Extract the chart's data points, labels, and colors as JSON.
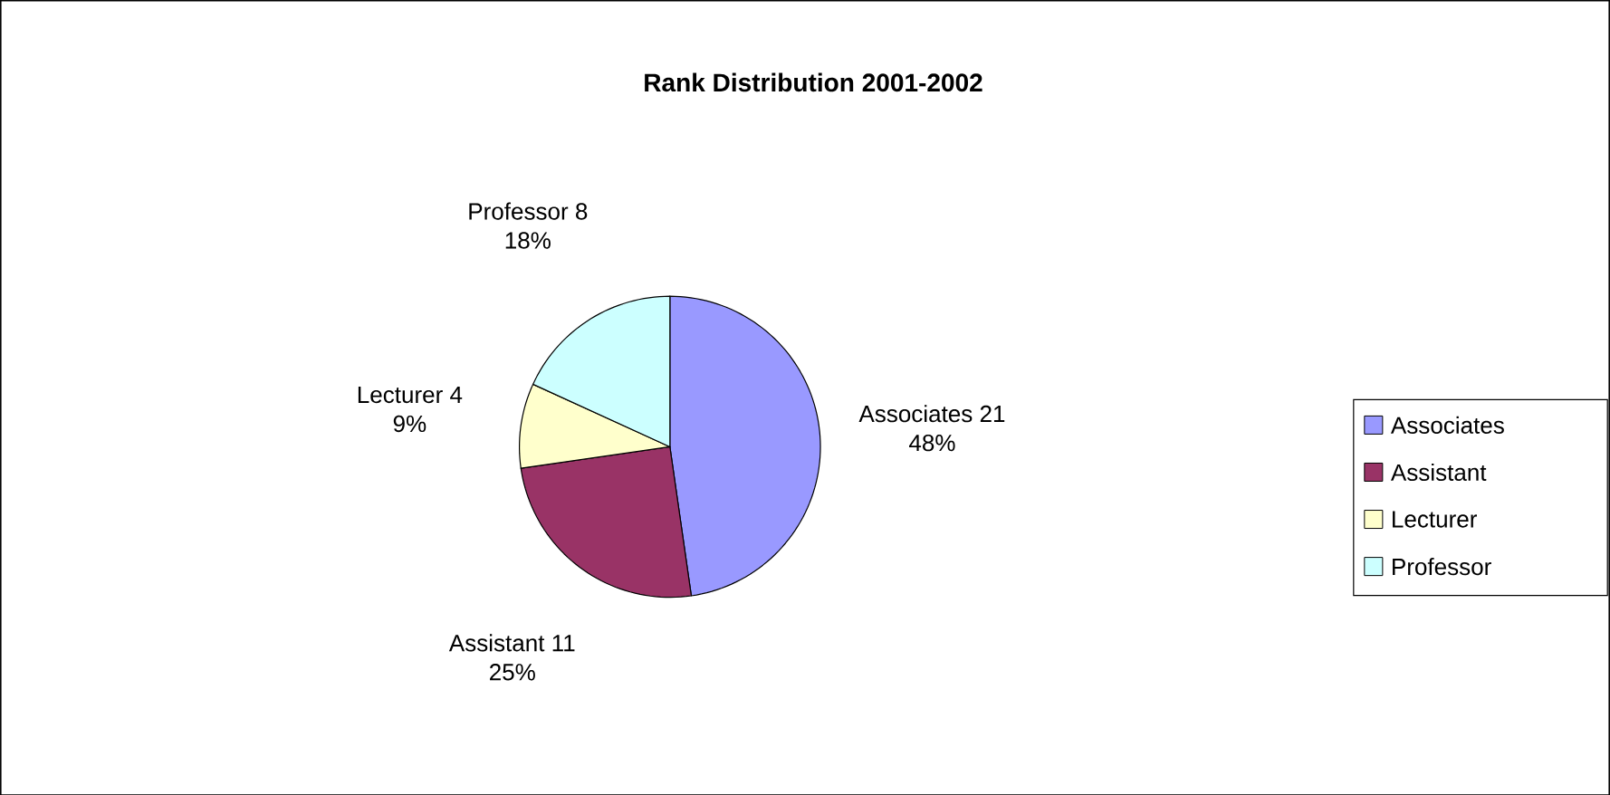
{
  "chart_data": {
    "type": "pie",
    "title": "Rank Distribution 2001-2002",
    "categories": [
      "Associates",
      "Assistant",
      "Lecturer",
      "Professor"
    ],
    "values": [
      21,
      11,
      4,
      8
    ],
    "data_labels": true,
    "annotations": [
      {
        "text": "48%",
        "x": "Associates"
      },
      {
        "text": "25%",
        "x": "Assistant"
      },
      {
        "text": "9%",
        "x": "Lecturer"
      },
      {
        "text": "18%",
        "x": "Professor"
      }
    ],
    "colors": [
      "#9999ff",
      "#993366",
      "#ffffcc",
      "#ccffff"
    ],
    "legend": "right"
  }
}
